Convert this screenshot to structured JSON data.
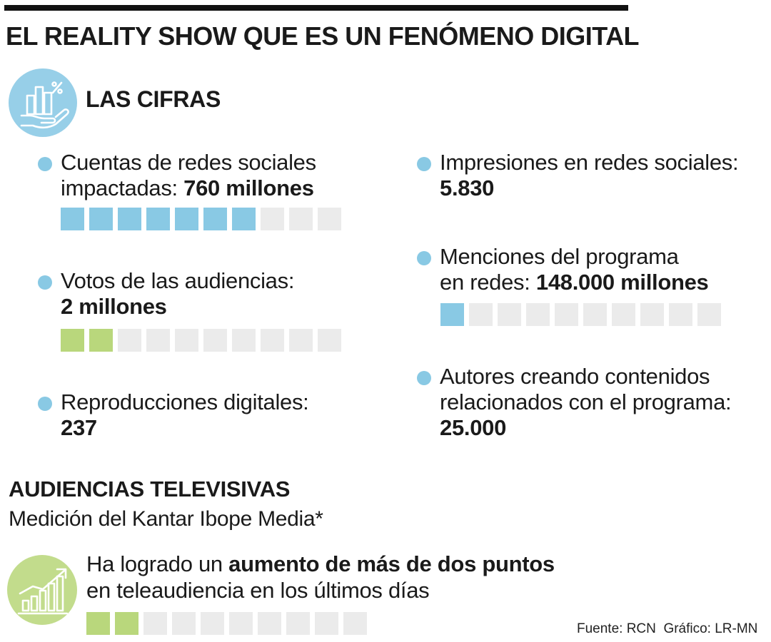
{
  "title": "EL REALITY SHOW QUE ES UN FENÓMENO DIGITAL",
  "colors": {
    "blue": "#89c9e4",
    "green": "#b9d77c",
    "gray": "#ebebeb",
    "icon_blue_bg": "#97cfe8",
    "icon_green_bg": "#c2dc8c"
  },
  "cifras": {
    "heading": "LAS CIFRAS",
    "icon": "chart-hand-icon",
    "items": [
      {
        "text": "Cuentas de redes sociales",
        "text2": "impactadas: ",
        "value": "760 millones",
        "bar": {
          "filled": 7,
          "total": 10,
          "color": "blue"
        }
      },
      {
        "text": "Votos de las audiencias:",
        "value": "2 millones",
        "bar": {
          "filled": 2,
          "total": 10,
          "color": "green"
        }
      },
      {
        "text": "Reproducciones digitales:",
        "value": "237"
      },
      {
        "text": "Impresiones en redes sociales:",
        "value": "5.830"
      },
      {
        "text": "Menciones del programa",
        "text2": "en redes: ",
        "value": "148.000 millones",
        "bar": {
          "filled": 1,
          "total": 10,
          "color": "blue"
        }
      },
      {
        "text": "Autores creando contenidos",
        "text2": "relacionados con el programa:",
        "value": "25.000"
      }
    ]
  },
  "audiencias": {
    "heading": "AUDIENCIAS TELEVISIVAS",
    "subheading": "Medición del Kantar Ibope Media*",
    "icon": "growth-chart-icon",
    "line1_prefix": "Ha logrado un ",
    "line1_bold": "aumento de más de dos puntos",
    "line2": "en teleaudiencia en los últimos días",
    "bar": {
      "filled": 2,
      "total": 10,
      "color": "green"
    }
  },
  "footer": {
    "source": "Fuente: RCN",
    "credit": "Gráfico: LR-MN"
  }
}
